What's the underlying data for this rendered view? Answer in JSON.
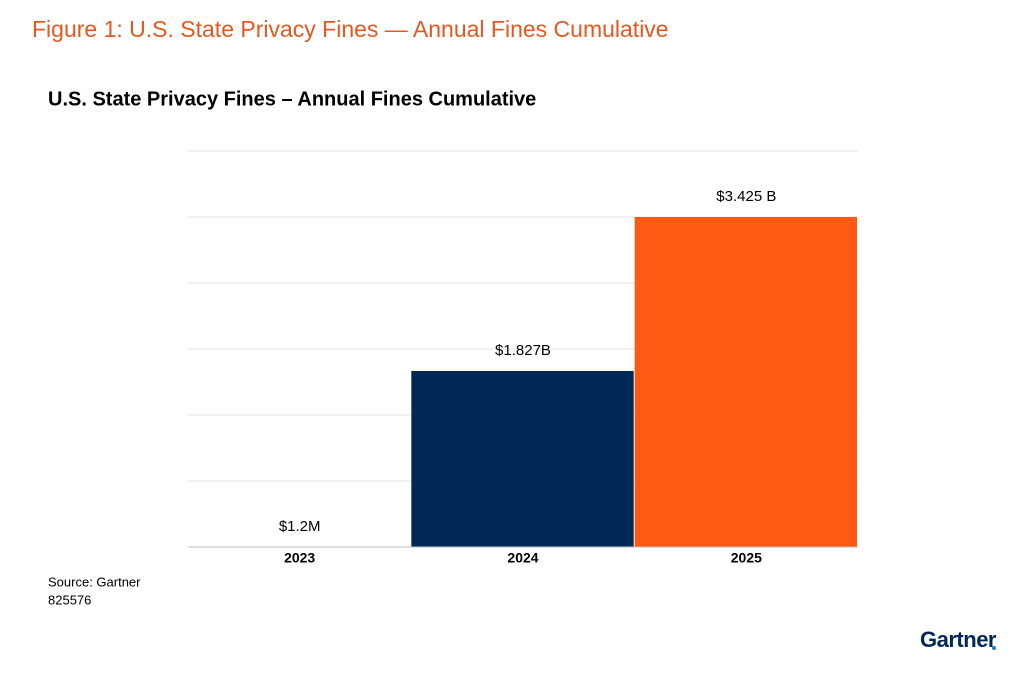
{
  "figure_title": "Figure 1: U.S. State Privacy Fines — Annual Fines Cumulative",
  "source": "Source: Gartner",
  "doc_id": "825576",
  "brand": "Gartner",
  "chart_data": {
    "type": "bar",
    "title": "U.S. State Privacy Fines – Annual Fines Cumulative",
    "categories": [
      "2023",
      "2024",
      "2025"
    ],
    "values": [
      1200000,
      1827000000,
      3425000000
    ],
    "value_labels": [
      "$1.2M",
      "$1.827B",
      "$3.425 B"
    ],
    "colors": [
      "#002856",
      "#002856",
      "#ff5a14"
    ],
    "ylim": [
      0,
      4110000000
    ],
    "grid": true
  }
}
